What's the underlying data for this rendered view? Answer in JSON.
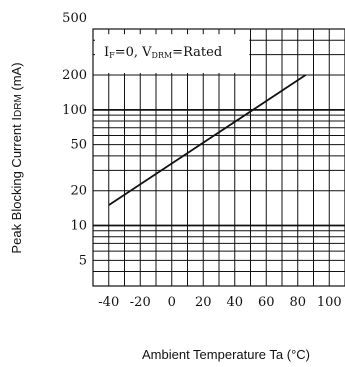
{
  "chart_data": {
    "type": "line",
    "xlabel": "Ambient Temperature Ta (°C)",
    "ylabel": "Peak Blocking Current IDRM (mA)",
    "ylabel_parts": {
      "pre": "Peak Blocking Current I",
      "sub": "DRM",
      "post": " (mA)"
    },
    "x_scale": "linear",
    "y_scale": "log",
    "xlim": [
      -50,
      110
    ],
    "ylim": [
      3,
      500
    ],
    "grid": true,
    "x_ticks": [
      -40,
      -20,
      0,
      20,
      40,
      60,
      80,
      100
    ],
    "x_tick_labels": [
      "-40",
      "-20",
      "0",
      "20",
      "40",
      "60",
      "80",
      "100"
    ],
    "y_ticks": [
      5,
      10,
      20,
      50,
      100,
      200,
      500
    ],
    "y_tick_labels": [
      "5",
      "10",
      "20",
      "50",
      "100",
      "200",
      "500"
    ],
    "annotation": {
      "text": "IF=0, VDRM=Rated",
      "i": "I",
      "i_sub": "F",
      "mid": "=0, V",
      "v_sub": "DRM",
      "end": "=Rated"
    },
    "series": [
      {
        "x": [
          -40,
          85
        ],
        "y": [
          15,
          200
        ]
      }
    ]
  }
}
